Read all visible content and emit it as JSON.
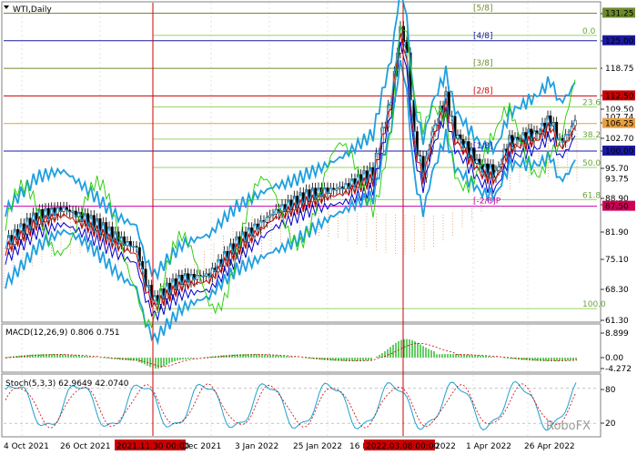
{
  "chart_title": "WTI,Daily",
  "colors": {
    "grid_line": "#c8c8c8",
    "crosshair": "#cc0000",
    "price": "#000000",
    "bollinger": "#1e9fe0",
    "ma_red": "#cc0000",
    "ma_blue": "#0000cc",
    "oscillator_green": "#22cc00",
    "cloud": "#d89460",
    "macd_hist": "#00aa00",
    "macd_signal": "#cc0000",
    "stoch_main": "#1ea0d0",
    "stoch_signal": "#cc0000"
  },
  "chart_data": [
    {
      "type": "candlestick",
      "title": "WTI,Daily",
      "y_ticks": [
        "131.25",
        "125.00",
        "118.75",
        "112.50",
        "109.50",
        "106.25",
        "102.70",
        "100.00",
        "95.70",
        "88.90",
        "87.50",
        "81.90",
        "75.10",
        "68.30",
        "61.30"
      ],
      "x_ticks": [
        "4 Oct 2021",
        "26 Oct 2021",
        "2021.11.30 00:00",
        "Dec 2021",
        "3 Jan 2022",
        "25 Jan 2022",
        "16 F",
        "2022.03.08 00:00",
        "2022",
        "1 Apr 2022",
        "26 Apr 2022"
      ],
      "price_labels": [
        {
          "text": "131.25",
          "bg": "#6d8b2e",
          "fg": "#ffffff",
          "value": 131.25
        },
        {
          "text": "125.00",
          "bg": "#1a1aa0",
          "fg": "#ffffff",
          "value": 125.0
        },
        {
          "text": "118.75",
          "bg": "#ffffff",
          "fg": "#000000",
          "value": 118.75
        },
        {
          "text": "112.50",
          "bg": "#cc0000",
          "fg": "#ffffff",
          "value": 112.5
        },
        {
          "text": "107.74",
          "bg": "#ffffff",
          "fg": "#000000",
          "value": 107.74
        },
        {
          "text": "106.25",
          "bg": "#e8a040",
          "fg": "#000000",
          "value": 106.25
        },
        {
          "text": "100.00",
          "bg": "#1a1aa0",
          "fg": "#ffffff",
          "value": 100.0
        },
        {
          "text": "93.75",
          "bg": "#ffffff",
          "fg": "#e060a0",
          "value": 93.75
        },
        {
          "text": "87.50",
          "bg": "#cc0055",
          "fg": "#ffffff",
          "value": 87.5
        }
      ],
      "murrey_levels": [
        {
          "label": "[5/8]",
          "value": 131.25,
          "color": "#6d8b2e"
        },
        {
          "label": "[4/8]",
          "value": 125.0,
          "color": "#1a1aa0"
        },
        {
          "label": "[3/8]",
          "value": 118.75,
          "color": "#6d8b2e"
        },
        {
          "label": "[2/8]",
          "value": 112.5,
          "color": "#cc0000"
        },
        {
          "label": "[1/8]",
          "value": 100.0,
          "color": "#1a1aa0"
        },
        {
          "label": "[-2/8]P",
          "value": 87.5,
          "color": "#cc00aa"
        }
      ],
      "fibonacci_levels": [
        {
          "label": "0.0",
          "value": 126.2
        },
        {
          "label": "23.6",
          "value": 110.0
        },
        {
          "label": "38.2",
          "value": 102.7
        },
        {
          "label": "50.0",
          "value": 96.3
        },
        {
          "label": "61.8",
          "value": 89.0
        },
        {
          "label": "100.0",
          "value": 64.3
        }
      ],
      "crosshair_dates": [
        "2021.11.30 00:00",
        "2022.03.08 00:00"
      ],
      "watermark": "RoboFX"
    },
    {
      "type": "bar",
      "title": "MACD(12,26,9) 0.806 0.751",
      "y_ticks": [
        "8.899",
        "0.00",
        "-4.272"
      ],
      "ylim": [
        -4.272,
        8.899
      ]
    },
    {
      "type": "line",
      "title": "Stoch(5,3,3) 62.9649 42.0740",
      "y_ticks": [
        "80",
        "20"
      ],
      "ylim": [
        0,
        100
      ]
    }
  ]
}
